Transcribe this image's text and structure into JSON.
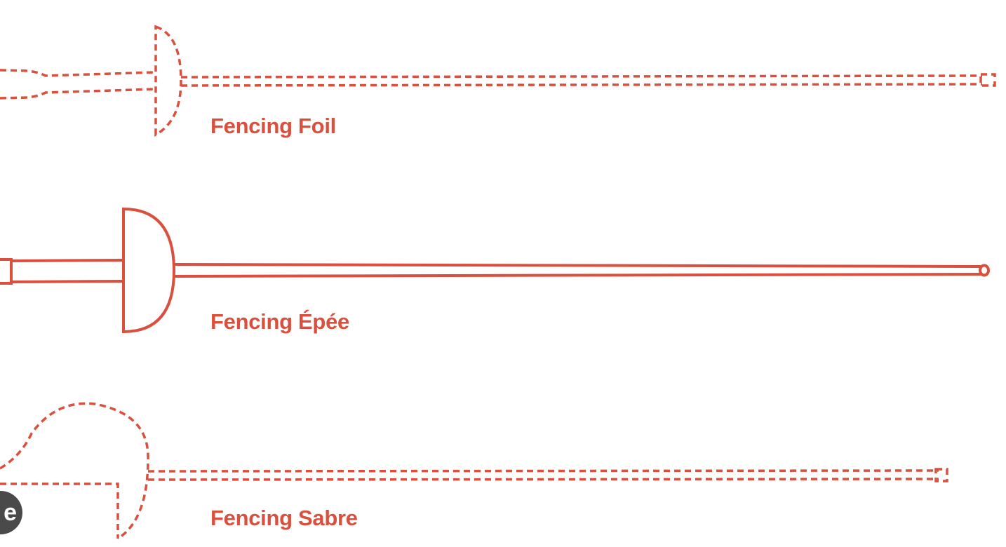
{
  "accent_color": "#d9503e",
  "weapons": [
    {
      "name": "Fencing Foil",
      "style": "dashed"
    },
    {
      "name": "Fencing Épée",
      "style": "solid"
    },
    {
      "name": "Fencing Sabre",
      "style": "dashed"
    }
  ],
  "corner_badge": {
    "icon": "badge-icon",
    "text": "e"
  }
}
